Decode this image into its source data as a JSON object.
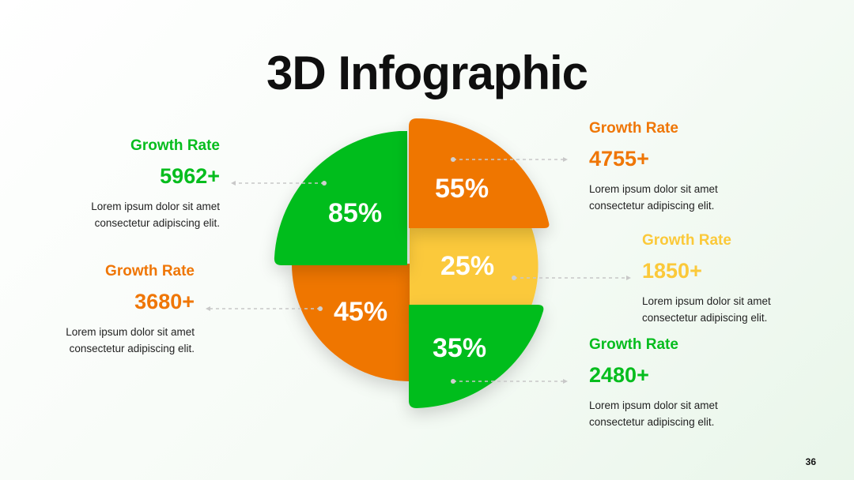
{
  "slide": {
    "title": "3D Infographic",
    "page_number": "36"
  },
  "colors": {
    "green": "#06bd1e",
    "orange": "#ef7606",
    "yellow": "#fbc93a",
    "title": "#0f0f0f"
  },
  "segments": [
    {
      "percent": "85%",
      "label": "Growth Rate",
      "value": "5962+",
      "description_line1": "Lorem ipsum dolor sit amet",
      "description_line2": "consectetur adipiscing elit.",
      "color": "#06bd1e"
    },
    {
      "percent": "55%",
      "label": "Growth Rate",
      "value": "4755+",
      "description_line1": "Lorem ipsum dolor sit amet",
      "description_line2": "consectetur adipiscing elit.",
      "color": "#ef7606"
    },
    {
      "percent": "25%",
      "label": "Growth Rate",
      "value": "1850+",
      "description_line1": "Lorem ipsum dolor sit amet",
      "description_line2": "consectetur adipiscing elit.",
      "color": "#fbc93a"
    },
    {
      "percent": "45%",
      "label": "Growth Rate",
      "value": "3680+",
      "description_line1": "Lorem ipsum dolor sit amet",
      "description_line2": "consectetur adipiscing elit.",
      "color": "#ef7606"
    },
    {
      "percent": "35%",
      "label": "Growth Rate",
      "value": "2480+",
      "description_line1": "Lorem ipsum dolor sit amet",
      "description_line2": "consectetur adipiscing elit.",
      "color": "#06bd1e"
    }
  ]
}
